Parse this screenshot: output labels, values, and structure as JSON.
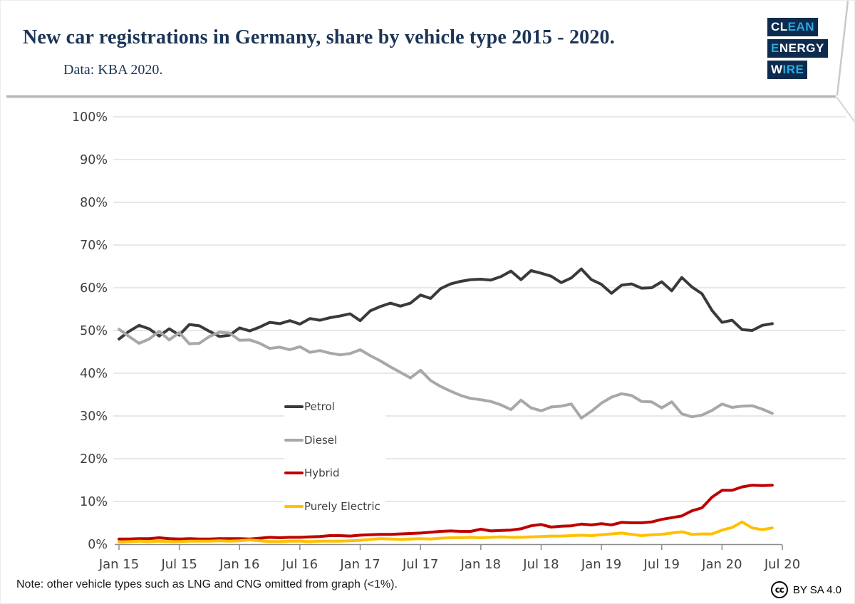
{
  "header": {
    "title": "New car registrations in Germany, share by vehicle type 2015 - 2020.",
    "subtitle": "Data: KBA 2020.",
    "logo": {
      "line1_white": "CL",
      "line1_blue": "EAN",
      "line2_blue": "E",
      "line2_white": "NERGY",
      "line3_white": "W",
      "line3_blue": "IRE"
    }
  },
  "footer": {
    "note": "Note: other vehicle types such as LNG and CNG omitted from graph (<1%).",
    "cc_icon": "cc",
    "license": "BY SA 4.0"
  },
  "chart_data": {
    "type": "line",
    "title": "New car registrations in Germany, share by vehicle type 2015 - 2020.",
    "frequency": "monthly",
    "x_range": [
      "2015-01",
      "2020-06"
    ],
    "ylim": [
      0,
      100
    ],
    "grid": "horizontal",
    "legend_position": "inside-center-left",
    "y_tick_labels": [
      "0%",
      "10%",
      "20%",
      "30%",
      "40%",
      "50%",
      "60%",
      "70%",
      "80%",
      "90%",
      "100%"
    ],
    "x_tick_labels": [
      "Jan 15",
      "Jul 15",
      "Jan 16",
      "Jul 16",
      "Jan 17",
      "Jul 17",
      "Jan 18",
      "Jul 18",
      "Jan 19",
      "Jul 19",
      "Jan 20",
      "Jul 20"
    ],
    "months": [
      "2015-01",
      "2015-02",
      "2015-03",
      "2015-04",
      "2015-05",
      "2015-06",
      "2015-07",
      "2015-08",
      "2015-09",
      "2015-10",
      "2015-11",
      "2015-12",
      "2016-01",
      "2016-02",
      "2016-03",
      "2016-04",
      "2016-05",
      "2016-06",
      "2016-07",
      "2016-08",
      "2016-09",
      "2016-10",
      "2016-11",
      "2016-12",
      "2017-01",
      "2017-02",
      "2017-03",
      "2017-04",
      "2017-05",
      "2017-06",
      "2017-07",
      "2017-08",
      "2017-09",
      "2017-10",
      "2017-11",
      "2017-12",
      "2018-01",
      "2018-02",
      "2018-03",
      "2018-04",
      "2018-05",
      "2018-06",
      "2018-07",
      "2018-08",
      "2018-09",
      "2018-10",
      "2018-11",
      "2018-12",
      "2019-01",
      "2019-02",
      "2019-03",
      "2019-04",
      "2019-05",
      "2019-06",
      "2019-07",
      "2019-08",
      "2019-09",
      "2019-10",
      "2019-11",
      "2019-12",
      "2020-01",
      "2020-02",
      "2020-03",
      "2020-04",
      "2020-05",
      "2020-06"
    ],
    "series": [
      {
        "name": "Petrol",
        "color": "#3a3a3a",
        "values": [
          48.0,
          49.8,
          51.2,
          50.4,
          48.7,
          50.4,
          48.9,
          51.4,
          51.1,
          49.8,
          48.6,
          48.9,
          50.6,
          49.9,
          50.8,
          51.9,
          51.6,
          52.3,
          51.5,
          52.8,
          52.4,
          53.0,
          53.4,
          53.9,
          52.3,
          54.6,
          55.6,
          56.4,
          55.7,
          56.4,
          58.3,
          57.5,
          59.8,
          60.9,
          61.5,
          61.9,
          62.0,
          61.8,
          62.6,
          63.9,
          61.9,
          64.0,
          63.4,
          62.7,
          61.2,
          62.3,
          64.4,
          61.9,
          60.8,
          58.7,
          60.6,
          60.9,
          59.9,
          60.0,
          61.4,
          59.3,
          62.4,
          60.2,
          58.6,
          54.7,
          51.9,
          52.4,
          50.2,
          50.0,
          51.2,
          51.6
        ]
      },
      {
        "name": "Diesel",
        "color": "#a8a8a8",
        "values": [
          50.3,
          48.6,
          47.0,
          48.0,
          49.8,
          47.8,
          49.5,
          46.9,
          47.0,
          48.6,
          49.6,
          49.4,
          47.7,
          47.8,
          47.0,
          45.8,
          46.1,
          45.5,
          46.2,
          44.9,
          45.3,
          44.7,
          44.3,
          44.6,
          45.5,
          44.1,
          42.9,
          41.5,
          40.2,
          38.9,
          40.7,
          38.3,
          36.9,
          35.8,
          34.8,
          34.1,
          33.8,
          33.4,
          32.6,
          31.5,
          33.7,
          31.9,
          31.2,
          32.1,
          32.3,
          32.8,
          29.5,
          31.1,
          33.0,
          34.4,
          35.2,
          34.8,
          33.4,
          33.3,
          31.9,
          33.3,
          30.5,
          29.8,
          30.2,
          31.3,
          32.8,
          32.0,
          32.3,
          32.4,
          31.6,
          30.6
        ]
      },
      {
        "name": "Hybrid",
        "color": "#c00000",
        "values": [
          1.2,
          1.2,
          1.3,
          1.3,
          1.5,
          1.3,
          1.2,
          1.3,
          1.2,
          1.2,
          1.3,
          1.3,
          1.3,
          1.2,
          1.4,
          1.6,
          1.5,
          1.6,
          1.6,
          1.7,
          1.8,
          2.0,
          2.0,
          1.9,
          2.1,
          2.2,
          2.3,
          2.3,
          2.4,
          2.5,
          2.6,
          2.8,
          3.0,
          3.1,
          3.0,
          3.0,
          3.5,
          3.1,
          3.2,
          3.3,
          3.6,
          4.3,
          4.6,
          4.0,
          4.2,
          4.3,
          4.7,
          4.5,
          4.8,
          4.5,
          5.1,
          5.0,
          5.0,
          5.2,
          5.8,
          6.2,
          6.6,
          7.8,
          8.5,
          11.0,
          12.6,
          12.6,
          13.4,
          13.8,
          13.7,
          13.8
        ]
      },
      {
        "name": "Purely Electric",
        "color": "#ffc000",
        "values": [
          0.5,
          0.6,
          0.7,
          0.6,
          0.7,
          0.6,
          0.6,
          0.7,
          0.7,
          0.7,
          0.8,
          0.7,
          0.8,
          1.0,
          0.8,
          0.6,
          0.6,
          0.7,
          0.7,
          0.6,
          0.7,
          0.7,
          0.7,
          0.8,
          0.9,
          1.1,
          1.3,
          1.2,
          1.1,
          1.2,
          1.3,
          1.2,
          1.4,
          1.5,
          1.5,
          1.6,
          1.5,
          1.6,
          1.7,
          1.6,
          1.6,
          1.7,
          1.8,
          1.9,
          1.9,
          2.0,
          2.1,
          2.0,
          2.2,
          2.4,
          2.6,
          2.3,
          2.0,
          2.2,
          2.3,
          2.6,
          2.9,
          2.3,
          2.4,
          2.4,
          3.3,
          3.9,
          5.2,
          3.8,
          3.4,
          3.8
        ]
      }
    ]
  }
}
